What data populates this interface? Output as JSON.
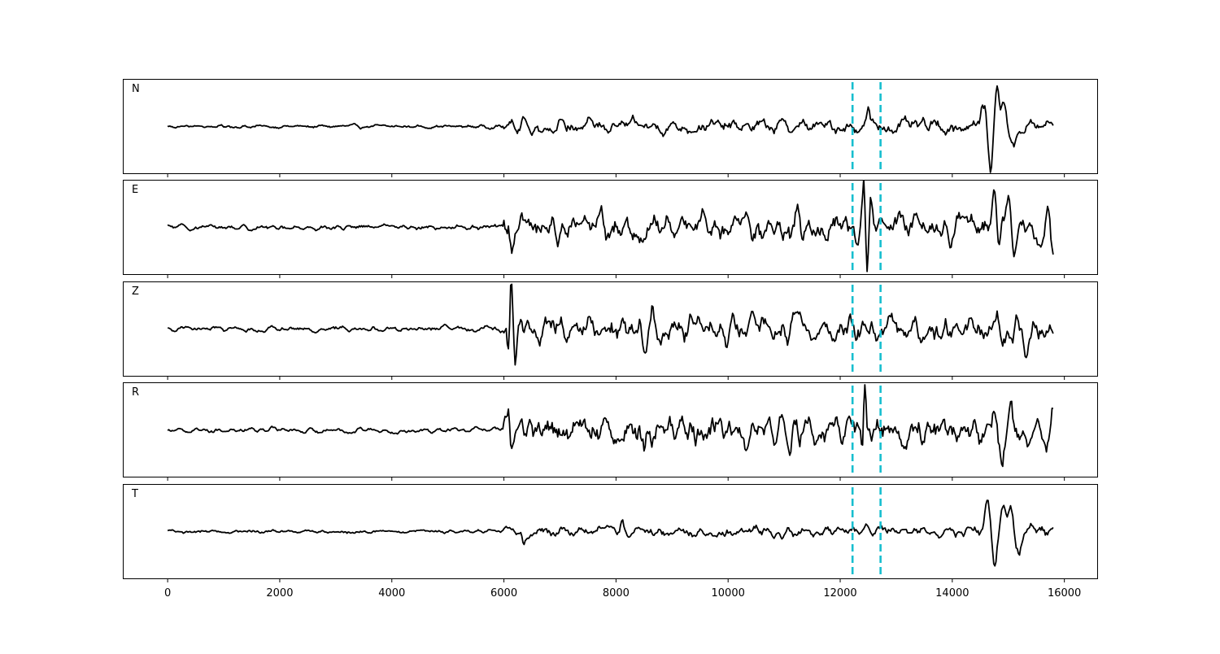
{
  "chart_data": {
    "type": "line",
    "xlim": [
      -800,
      16600
    ],
    "x_ticks": [
      0,
      2000,
      4000,
      6000,
      8000,
      10000,
      12000,
      14000,
      16000
    ],
    "x_tick_labels": [
      "0",
      "2000",
      "4000",
      "6000",
      "8000",
      "10000",
      "12000",
      "14000",
      "16000"
    ],
    "x_range": [
      0,
      15800
    ],
    "shared_x": true,
    "grid": false,
    "marker_lines": [
      12220,
      12720
    ],
    "marker_color": "#17becf",
    "trace_color": "#000000",
    "panels": [
      {
        "label": "N",
        "ylim": [
          -1.2,
          1.2
        ],
        "features": [
          {
            "t": 6350,
            "a": 0.28,
            "w": 40
          },
          {
            "t": 12500,
            "a": 0.45,
            "w": 35
          },
          {
            "t": 14560,
            "a": 0.55,
            "w": 60
          },
          {
            "t": 14680,
            "a": -1.0,
            "w": 55
          },
          {
            "t": 14800,
            "a": 0.95,
            "w": 55
          },
          {
            "t": 14920,
            "a": 0.6,
            "w": 55
          },
          {
            "t": 15100,
            "a": -0.55,
            "w": 60
          }
        ],
        "segments": [
          {
            "from": 0,
            "to": 6000,
            "amp": 0.04
          },
          {
            "from": 6000,
            "to": 14400,
            "amp": 0.16
          },
          {
            "from": 14400,
            "to": 15800,
            "amp": 0.18
          }
        ]
      },
      {
        "label": "E",
        "ylim": [
          -1.2,
          1.2
        ],
        "features": [
          {
            "t": 6150,
            "a": -0.45,
            "w": 40
          },
          {
            "t": 6200,
            "a": 0.4,
            "w": 40
          },
          {
            "t": 7750,
            "a": 0.45,
            "w": 50
          },
          {
            "t": 11100,
            "a": -0.35,
            "w": 50
          },
          {
            "t": 11250,
            "a": 0.5,
            "w": 50
          },
          {
            "t": 12420,
            "a": 1.05,
            "w": 30
          },
          {
            "t": 12480,
            "a": -0.85,
            "w": 30
          },
          {
            "t": 12550,
            "a": 0.6,
            "w": 30
          },
          {
            "t": 14750,
            "a": 0.65,
            "w": 50
          },
          {
            "t": 14830,
            "a": -0.95,
            "w": 50
          },
          {
            "t": 15000,
            "a": 0.85,
            "w": 50
          },
          {
            "t": 15100,
            "a": -0.5,
            "w": 50
          },
          {
            "t": 15700,
            "a": 0.6,
            "w": 50
          },
          {
            "t": 15790,
            "a": -0.45,
            "w": 40
          }
        ],
        "segments": [
          {
            "from": 0,
            "to": 6000,
            "amp": 0.06
          },
          {
            "from": 6000,
            "to": 15800,
            "amp": 0.32
          }
        ]
      },
      {
        "label": "Z",
        "ylim": [
          -1.2,
          1.2
        ],
        "features": [
          {
            "t": 6080,
            "a": -0.85,
            "w": 30
          },
          {
            "t": 6130,
            "a": 1.05,
            "w": 30
          },
          {
            "t": 6200,
            "a": -0.95,
            "w": 30
          },
          {
            "t": 6300,
            "a": 0.4,
            "w": 35
          },
          {
            "t": 8500,
            "a": -0.6,
            "w": 45
          },
          {
            "t": 8650,
            "a": 0.5,
            "w": 45
          },
          {
            "t": 15150,
            "a": 0.6,
            "w": 45
          },
          {
            "t": 15300,
            "a": -0.7,
            "w": 45
          }
        ],
        "segments": [
          {
            "from": 0,
            "to": 6000,
            "amp": 0.06
          },
          {
            "from": 6000,
            "to": 15800,
            "amp": 0.3
          }
        ]
      },
      {
        "label": "R",
        "ylim": [
          -1.2,
          1.2
        ],
        "features": [
          {
            "t": 6080,
            "a": 0.55,
            "w": 40
          },
          {
            "t": 6150,
            "a": -0.45,
            "w": 40
          },
          {
            "t": 8500,
            "a": -0.6,
            "w": 45
          },
          {
            "t": 11100,
            "a": -0.6,
            "w": 45
          },
          {
            "t": 12440,
            "a": 0.95,
            "w": 30
          },
          {
            "t": 12390,
            "a": -0.95,
            "w": 30
          },
          {
            "t": 13850,
            "a": 0.7,
            "w": 40
          },
          {
            "t": 14750,
            "a": 0.75,
            "w": 45
          },
          {
            "t": 14880,
            "a": -0.9,
            "w": 45
          },
          {
            "t": 15050,
            "a": 0.7,
            "w": 45
          },
          {
            "t": 15680,
            "a": -0.65,
            "w": 40
          },
          {
            "t": 15790,
            "a": 0.55,
            "w": 35
          }
        ],
        "segments": [
          {
            "from": 0,
            "to": 6000,
            "amp": 0.06
          },
          {
            "from": 6000,
            "to": 15800,
            "amp": 0.34
          }
        ]
      },
      {
        "label": "T",
        "ylim": [
          -1.2,
          1.2
        ],
        "features": [
          {
            "t": 6350,
            "a": -0.3,
            "w": 35
          },
          {
            "t": 8100,
            "a": 0.2,
            "w": 40
          },
          {
            "t": 14620,
            "a": 0.85,
            "w": 55
          },
          {
            "t": 14750,
            "a": -0.95,
            "w": 55
          },
          {
            "t": 14900,
            "a": 0.55,
            "w": 55
          },
          {
            "t": 15050,
            "a": 0.65,
            "w": 55
          },
          {
            "t": 15200,
            "a": -0.45,
            "w": 55
          }
        ],
        "segments": [
          {
            "from": 0,
            "to": 6000,
            "amp": 0.04
          },
          {
            "from": 6000,
            "to": 14400,
            "amp": 0.12
          },
          {
            "from": 14400,
            "to": 15800,
            "amp": 0.18
          }
        ]
      }
    ]
  }
}
